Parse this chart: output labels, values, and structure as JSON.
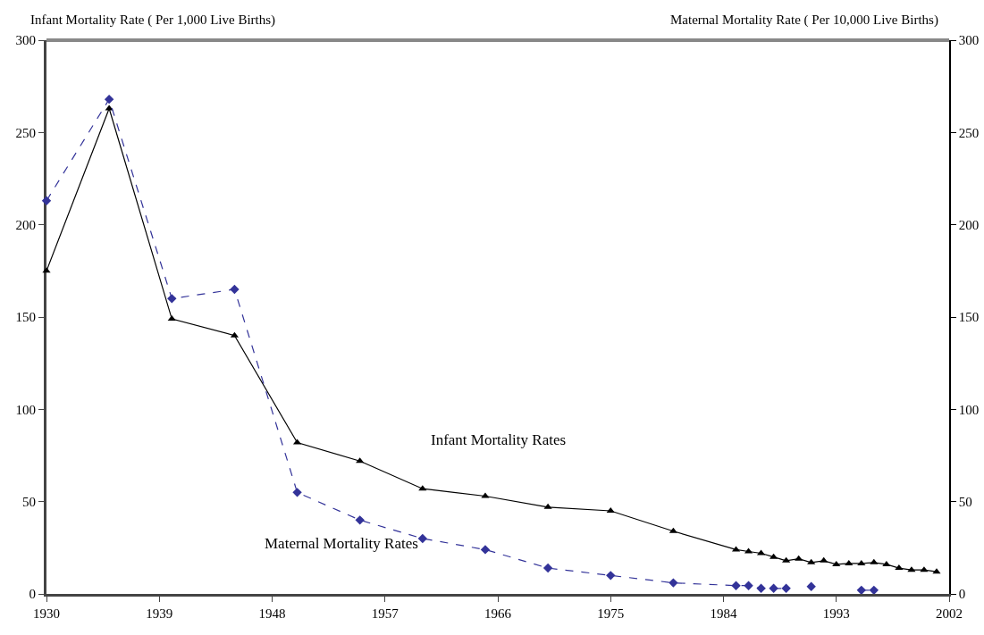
{
  "chart_data": {
    "type": "line",
    "ylabel": "Infant Mortality Rate ( Per 1,000 Live Births)",
    "y2label": "Maternal Mortality Rate ( Per 10,000 Live Births)",
    "xlim": [
      1930,
      2002
    ],
    "xticks": [
      1930,
      1939,
      1948,
      1957,
      1966,
      1975,
      1984,
      1993,
      2002
    ],
    "ylim": [
      0,
      300
    ],
    "yticks": [
      0,
      50,
      100,
      150,
      200,
      250,
      300
    ],
    "y2lim": [
      0,
      300
    ],
    "y2ticks": [
      0,
      50,
      100,
      150,
      200,
      250,
      300
    ],
    "grid": false,
    "legend": false,
    "series": [
      {
        "name": "Infant Mortality Rates",
        "color": "#000000",
        "marker": "triangle",
        "line_style": "solid",
        "x": [
          1930,
          1935,
          1940,
          1945,
          1950,
          1955,
          1960,
          1965,
          1970,
          1975,
          1980,
          1985,
          1986,
          1987,
          1988,
          1989,
          1990,
          1991,
          1992,
          1993,
          1994,
          1995,
          1996,
          1997,
          1998,
          1999,
          2000,
          2001
        ],
        "values": [
          175,
          263,
          149,
          140,
          82,
          72,
          57,
          53,
          47,
          45,
          34,
          24,
          23,
          22,
          20,
          18,
          19,
          17,
          18,
          16,
          16.5,
          16.5,
          17,
          16,
          14,
          13,
          13,
          12
        ]
      },
      {
        "name": "Maternal Mortality Rates",
        "color": "#333399",
        "marker": "diamond",
        "line_style": "dashed",
        "axis": "y2",
        "x": [
          1930,
          1935,
          1940,
          1945,
          1950,
          1955,
          1960,
          1965,
          1970,
          1975,
          1980,
          1985,
          1986,
          1987,
          1988,
          1989,
          1990,
          1991,
          1992,
          1993,
          1994,
          1995,
          1996
        ],
        "values": [
          213,
          268,
          160,
          165,
          55,
          40,
          30,
          24,
          14,
          10,
          6,
          4.5,
          4.5,
          3,
          3,
          3,
          null,
          4,
          null,
          null,
          null,
          2,
          2
        ]
      }
    ]
  }
}
